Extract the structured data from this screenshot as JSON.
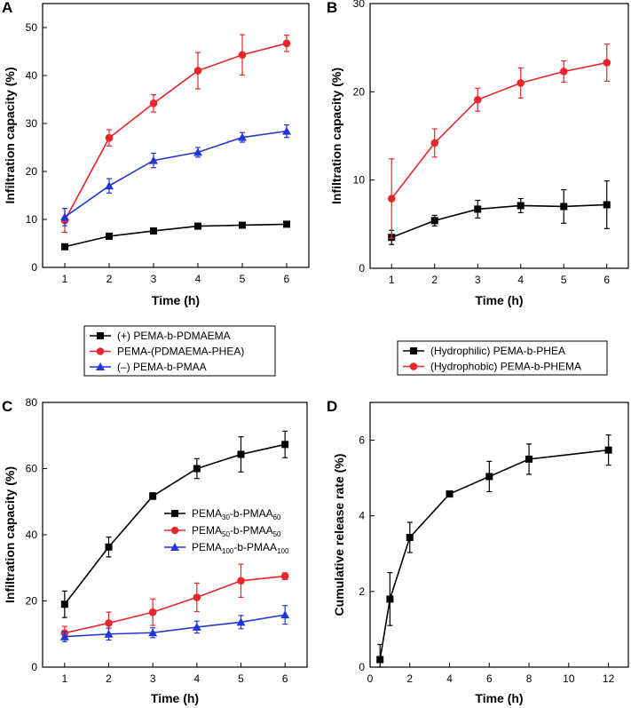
{
  "chart_data": [
    {
      "panel": "A",
      "type": "line",
      "xlabel": "Time (h)",
      "ylabel": "Infiltration capacity (%)",
      "xlim": [
        0.5,
        6.5
      ],
      "ylim": [
        0,
        55
      ],
      "xticks": [
        1,
        2,
        3,
        4,
        5,
        6
      ],
      "yticks": [
        0,
        10,
        20,
        30,
        40,
        50
      ],
      "legend": "below",
      "series": [
        {
          "name": "(+) PEMA-b-PDMAEMA",
          "color": "#000000",
          "marker": "square",
          "x": [
            1,
            2,
            3,
            4,
            5,
            6
          ],
          "y": [
            4.3,
            6.5,
            7.6,
            8.6,
            8.8,
            9.0
          ],
          "err": [
            0.5,
            0.6,
            0.5,
            0.5,
            0.5,
            0.4
          ]
        },
        {
          "name": "PEMA-(PDMAEMA-PHEA)",
          "color": "#e8262b",
          "marker": "circle",
          "x": [
            1,
            2,
            3,
            4,
            5,
            6
          ],
          "y": [
            9.8,
            27.0,
            34.2,
            41.0,
            44.3,
            46.7
          ],
          "err": [
            2.5,
            1.7,
            1.8,
            3.8,
            4.2,
            1.7
          ]
        },
        {
          "name": "(–) PEMA-b-PMAA",
          "color": "#2437d6",
          "marker": "triangle",
          "x": [
            1,
            2,
            3,
            4,
            5,
            6
          ],
          "y": [
            10.5,
            17.0,
            22.3,
            24.0,
            27.1,
            28.4
          ],
          "err": [
            1.8,
            1.5,
            1.5,
            1.0,
            1.0,
            1.3
          ]
        }
      ]
    },
    {
      "panel": "B",
      "type": "line",
      "xlabel": "Time (h)",
      "ylabel": "Infiltration capacity (%)",
      "xlim": [
        0.5,
        6.5
      ],
      "ylim": [
        0,
        30
      ],
      "xticks": [
        1,
        2,
        3,
        4,
        5,
        6
      ],
      "yticks": [
        0,
        10,
        20,
        30
      ],
      "legend": "below",
      "series": [
        {
          "name": "(Hydrophilic) PEMA-b-PHEA",
          "color": "#000000",
          "marker": "square",
          "x": [
            1,
            2,
            3,
            4,
            5,
            6
          ],
          "y": [
            3.5,
            5.4,
            6.7,
            7.1,
            7.0,
            7.2
          ],
          "err": [
            0.8,
            0.6,
            1.0,
            0.8,
            1.9,
            2.7
          ]
        },
        {
          "name": "(Hydrophobic) PEMA-b-PHEMA",
          "color": "#e8262b",
          "marker": "circle",
          "x": [
            1,
            2,
            3,
            4,
            5,
            6
          ],
          "y": [
            7.9,
            14.2,
            19.1,
            21.0,
            22.3,
            23.3
          ],
          "err": [
            4.5,
            1.6,
            1.3,
            1.7,
            1.2,
            2.1
          ]
        }
      ]
    },
    {
      "panel": "C",
      "type": "line",
      "xlabel": "Time (h)",
      "ylabel": "Infiltration capacity (%)",
      "xlim": [
        0.5,
        6.5
      ],
      "ylim": [
        0,
        80
      ],
      "xticks": [
        1,
        2,
        3,
        4,
        5,
        6
      ],
      "yticks": [
        0,
        20,
        40,
        60,
        80
      ],
      "legend": "inside-right",
      "series": [
        {
          "name": "PEMA30-b-PMAA60",
          "label_parts": [
            "PEMA",
            "30",
            "-b-PMAA",
            "60"
          ],
          "color": "#000000",
          "marker": "square",
          "x": [
            1,
            2,
            3,
            4,
            5,
            6
          ],
          "y": [
            19.0,
            36.3,
            51.7,
            60.0,
            64.3,
            67.3
          ],
          "err": [
            4.0,
            3.0,
            1.0,
            3.0,
            5.3,
            4.0
          ]
        },
        {
          "name": "PEMA50-b-PMAA50",
          "label_parts": [
            "PEMA",
            "50",
            "-b-PMAA",
            "50"
          ],
          "color": "#e8262b",
          "marker": "circle",
          "x": [
            1,
            2,
            3,
            4,
            5,
            6
          ],
          "y": [
            10.3,
            13.3,
            16.6,
            21.1,
            26.1,
            27.5
          ],
          "err": [
            2.0,
            3.3,
            4.0,
            4.3,
            5.0,
            1.0
          ]
        },
        {
          "name": "PEMA100-b-PMAA100",
          "label_parts": [
            "PEMA",
            "100",
            "-b-PMAA",
            "100"
          ],
          "color": "#2437d6",
          "marker": "triangle",
          "x": [
            1,
            2,
            3,
            4,
            5,
            6
          ],
          "y": [
            9.2,
            10.0,
            10.4,
            12.1,
            13.6,
            15.8
          ],
          "err": [
            1.5,
            1.8,
            1.5,
            1.8,
            2.0,
            2.8
          ]
        }
      ]
    },
    {
      "panel": "D",
      "type": "line",
      "xlabel": "Time (h)",
      "ylabel": "Cumulative release rate (%)",
      "xlim": [
        0,
        13
      ],
      "ylim": [
        0,
        7
      ],
      "xticks": [
        0,
        2,
        4,
        6,
        8,
        10,
        12
      ],
      "yticks": [
        0,
        2,
        4,
        6
      ],
      "legend": "none",
      "series": [
        {
          "name": "Cumulative release",
          "color": "#000000",
          "marker": "square",
          "x": [
            0.5,
            1,
            2,
            4,
            6,
            8,
            12
          ],
          "y": [
            0.2,
            1.8,
            3.43,
            4.58,
            5.04,
            5.5,
            5.74
          ],
          "err": [
            0.4,
            0.7,
            0.4,
            0.05,
            0.4,
            0.4,
            0.4
          ]
        }
      ]
    }
  ]
}
